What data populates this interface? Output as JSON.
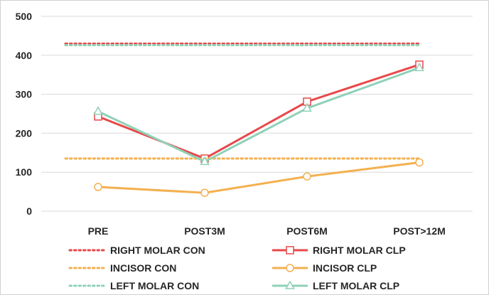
{
  "chart_data": {
    "type": "line",
    "categories": [
      "PRE",
      "POST3M",
      "POST6M",
      "POST>12M"
    ],
    "ylim": [
      0,
      500
    ],
    "y_ticks": [
      0,
      100,
      200,
      300,
      400,
      500
    ],
    "grid": true,
    "legend_position": "bottom",
    "series": [
      {
        "name": "RIGHT MOLAR CON",
        "values": [
          430,
          430,
          430,
          430
        ],
        "color": "#e8484a",
        "style": "dotted",
        "marker": "none"
      },
      {
        "name": "RIGHT MOLAR CLP",
        "values": [
          243,
          135,
          281,
          376
        ],
        "color": "#e8484a",
        "style": "solid",
        "marker": "square"
      },
      {
        "name": "INCISOR CON",
        "values": [
          135,
          135,
          135,
          135
        ],
        "color": "#f4b04f",
        "style": "dotted",
        "marker": "none"
      },
      {
        "name": "INCISOR CLP",
        "values": [
          62,
          47,
          89,
          125
        ],
        "color": "#f4b04f",
        "style": "solid",
        "marker": "circle"
      },
      {
        "name": "LEFT MOLAR CON",
        "values": [
          426,
          426,
          426,
          426
        ],
        "color": "#8fd1b7",
        "style": "dotted",
        "marker": "none"
      },
      {
        "name": "LEFT MOLAR CLP",
        "values": [
          256,
          127,
          264,
          368
        ],
        "color": "#8fd1b7",
        "style": "solid",
        "marker": "triangle"
      }
    ]
  }
}
